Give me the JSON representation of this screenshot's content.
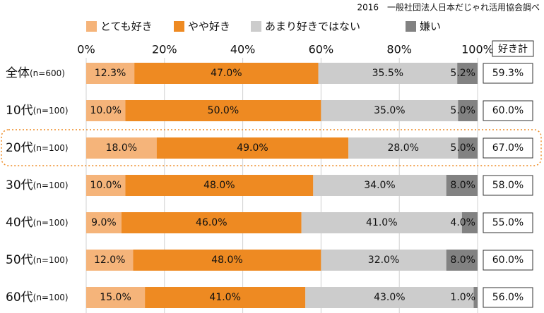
{
  "chart_data": {
    "type": "stacked-bar-horizontal",
    "source": "2016　一般社団法人日本だじゃれ活用協会調べ",
    "categories": [
      "全体",
      "10代",
      "20代",
      "30代",
      "40代",
      "50代",
      "60代"
    ],
    "sample_labels": [
      "(n=600)",
      "(n=100)",
      "(n=100)",
      "(n=100)",
      "(n=100)",
      "(n=100)",
      "(n=100)"
    ],
    "series": [
      {
        "name": "とても好き",
        "color": "#f5b47a",
        "values": [
          12.3,
          10.0,
          18.0,
          10.0,
          9.0,
          12.0,
          15.0
        ],
        "value_labels": [
          "12.3%",
          "10.0%",
          "18.0%",
          "10.0%",
          "9.0%",
          "12.0%",
          "15.0%"
        ]
      },
      {
        "name": "やや好き",
        "color": "#ee8a22",
        "values": [
          47.0,
          50.0,
          49.0,
          48.0,
          46.0,
          48.0,
          41.0
        ],
        "value_labels": [
          "47.0%",
          "50.0%",
          "49.0%",
          "48.0%",
          "46.0%",
          "48.0%",
          "41.0%"
        ]
      },
      {
        "name": "あまり好きではない",
        "color": "#cccccc",
        "values": [
          35.5,
          35.0,
          28.0,
          34.0,
          41.0,
          32.0,
          43.0
        ],
        "value_labels": [
          "35.5%",
          "35.0%",
          "28.0%",
          "34.0%",
          "41.0%",
          "32.0%",
          "43.0%"
        ]
      },
      {
        "name": "嫌い",
        "color": "#828282",
        "values": [
          5.2,
          5.0,
          5.0,
          8.0,
          4.0,
          8.0,
          1.0
        ],
        "value_labels": [
          "5.2%",
          "5.0%",
          "5.0%",
          "8.0%",
          "4.0%",
          "8.0%",
          "1.0%"
        ]
      }
    ],
    "totals": {
      "title": "好き計",
      "values": [
        59.3,
        60.0,
        67.0,
        58.0,
        55.0,
        60.0,
        56.0
      ],
      "value_labels": [
        "59.3%",
        "60.0%",
        "67.0%",
        "58.0%",
        "55.0%",
        "60.0%",
        "56.0%"
      ]
    },
    "highlight": 2,
    "highlight_color": "#ee8a22",
    "xlim": [
      0,
      100
    ],
    "xticks": [
      {
        "value": 0,
        "label": "0%"
      },
      {
        "value": 20,
        "label": "20%"
      },
      {
        "value": 40,
        "label": "40%"
      },
      {
        "value": 60,
        "label": "60%"
      },
      {
        "value": 80,
        "label": "80%"
      },
      {
        "value": 100,
        "label": "100%"
      }
    ],
    "grid": true
  }
}
